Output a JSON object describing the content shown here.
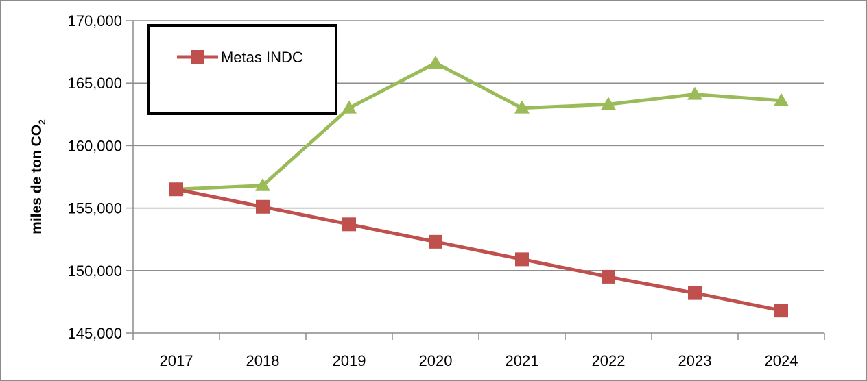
{
  "chart_data": {
    "type": "line",
    "title": "",
    "xlabel": "",
    "ylabel": "miles de ton CO",
    "ylabel_subscript": "2",
    "categories": [
      "2017",
      "2018",
      "2019",
      "2020",
      "2021",
      "2022",
      "2023",
      "2024"
    ],
    "ylim": [
      145000,
      170000
    ],
    "y_ticks": [
      145000,
      150000,
      155000,
      160000,
      165000,
      170000
    ],
    "y_tick_labels": [
      "145,000",
      "150,000",
      "155,000",
      "160,000",
      "165,000",
      "170,000"
    ],
    "grid": true,
    "legend": {
      "placement": "top-left",
      "entries": [
        "Metas INDC"
      ]
    },
    "series": [
      {
        "name": "Metas INDC",
        "color": "#c0504d",
        "marker": "square",
        "values": [
          156500,
          155100,
          153700,
          152300,
          150900,
          149500,
          148200,
          146800
        ]
      },
      {
        "color": "#9bbb59",
        "marker": "triangle",
        "values": [
          156500,
          156800,
          163000,
          166600,
          163000,
          163300,
          164100,
          163600
        ]
      }
    ]
  }
}
